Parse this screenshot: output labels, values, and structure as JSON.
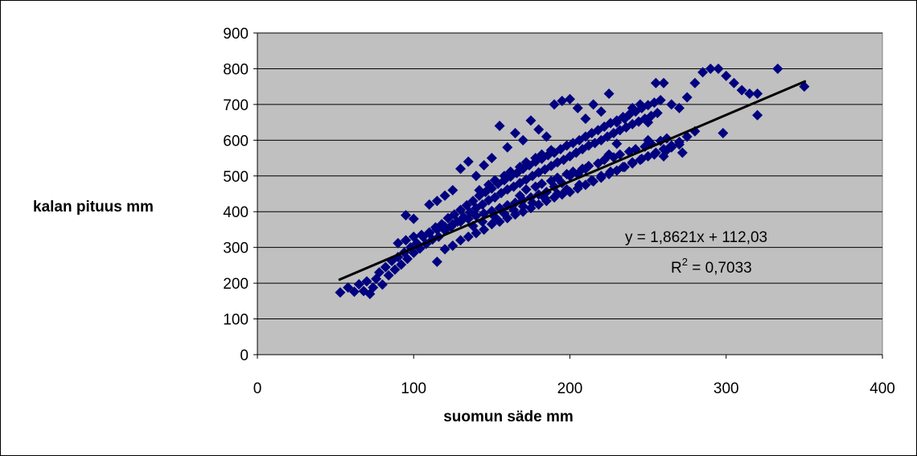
{
  "chart_data": {
    "type": "scatter",
    "xlabel": "suomun säde mm",
    "ylabel": "kalan pituus mm",
    "xlim": [
      0,
      400
    ],
    "ylim": [
      0,
      900
    ],
    "xticks": [
      "0",
      "100",
      "200",
      "300",
      "400"
    ],
    "yticks": [
      "0",
      "100",
      "200",
      "300",
      "400",
      "500",
      "600",
      "700",
      "800",
      "900"
    ],
    "grid": "horizontal",
    "plot_background": "#c0c0c0",
    "marker_color": "#000080",
    "trendline": {
      "slope": 1.8621,
      "intercept": 112.03,
      "x_range": [
        52,
        351
      ],
      "color": "#000000",
      "equation_label": "y = 1,8621x + 112,03",
      "r2_prefix": "R",
      "r2_superscript": "2",
      "r2_value": " = 0,7033"
    },
    "series": [
      {
        "marker": "diamond",
        "points": [
          [
            53,
            174
          ],
          [
            58,
            188
          ],
          [
            62,
            176
          ],
          [
            65,
            197
          ],
          [
            68,
            178
          ],
          [
            70,
            205
          ],
          [
            72,
            170
          ],
          [
            74,
            188
          ],
          [
            76,
            212
          ],
          [
            78,
            230
          ],
          [
            80,
            196
          ],
          [
            82,
            245
          ],
          [
            84,
            222
          ],
          [
            86,
            262
          ],
          [
            88,
            238
          ],
          [
            90,
            273
          ],
          [
            92,
            252
          ],
          [
            94,
            286
          ],
          [
            96,
            268
          ],
          [
            98,
            300
          ],
          [
            100,
            285
          ],
          [
            102,
            312
          ],
          [
            104,
            297
          ],
          [
            106,
            330
          ],
          [
            108,
            310
          ],
          [
            110,
            340
          ],
          [
            112,
            322
          ],
          [
            114,
            356
          ],
          [
            116,
            330
          ],
          [
            118,
            365
          ],
          [
            120,
            348
          ],
          [
            122,
            382
          ],
          [
            124,
            358
          ],
          [
            126,
            392
          ],
          [
            128,
            372
          ],
          [
            130,
            405
          ],
          [
            132,
            385
          ],
          [
            134,
            418
          ],
          [
            136,
            398
          ],
          [
            138,
            430
          ],
          [
            140,
            410
          ],
          [
            142,
            445
          ],
          [
            144,
            420
          ],
          [
            146,
            455
          ],
          [
            148,
            432
          ],
          [
            150,
            465
          ],
          [
            152,
            440
          ],
          [
            154,
            478
          ],
          [
            156,
            452
          ],
          [
            158,
            488
          ],
          [
            160,
            462
          ],
          [
            162,
            498
          ],
          [
            164,
            470
          ],
          [
            166,
            508
          ],
          [
            168,
            480
          ],
          [
            170,
            520
          ],
          [
            172,
            490
          ],
          [
            174,
            530
          ],
          [
            176,
            500
          ],
          [
            178,
            540
          ],
          [
            180,
            510
          ],
          [
            182,
            548
          ],
          [
            184,
            518
          ],
          [
            186,
            558
          ],
          [
            188,
            528
          ],
          [
            190,
            565
          ],
          [
            192,
            538
          ],
          [
            194,
            575
          ],
          [
            196,
            545
          ],
          [
            198,
            585
          ],
          [
            200,
            555
          ],
          [
            202,
            592
          ],
          [
            204,
            565
          ],
          [
            206,
            600
          ],
          [
            208,
            575
          ],
          [
            210,
            610
          ],
          [
            212,
            585
          ],
          [
            214,
            620
          ],
          [
            216,
            592
          ],
          [
            218,
            628
          ],
          [
            220,
            600
          ],
          [
            222,
            638
          ],
          [
            224,
            610
          ],
          [
            226,
            648
          ],
          [
            228,
            620
          ],
          [
            230,
            655
          ],
          [
            232,
            628
          ],
          [
            234,
            665
          ],
          [
            236,
            636
          ],
          [
            238,
            672
          ],
          [
            240,
            645
          ],
          [
            242,
            680
          ],
          [
            244,
            652
          ],
          [
            246,
            690
          ],
          [
            248,
            660
          ],
          [
            250,
            698
          ],
          [
            252,
            668
          ],
          [
            254,
            705
          ],
          [
            256,
            676
          ],
          [
            258,
            712
          ],
          [
            115,
            260
          ],
          [
            120,
            295
          ],
          [
            125,
            305
          ],
          [
            130,
            320
          ],
          [
            135,
            330
          ],
          [
            140,
            340
          ],
          [
            145,
            350
          ],
          [
            150,
            365
          ],
          [
            155,
            372
          ],
          [
            160,
            382
          ],
          [
            165,
            392
          ],
          [
            170,
            400
          ],
          [
            175,
            410
          ],
          [
            180,
            420
          ],
          [
            185,
            430
          ],
          [
            190,
            440
          ],
          [
            195,
            448
          ],
          [
            200,
            455
          ],
          [
            205,
            465
          ],
          [
            210,
            475
          ],
          [
            215,
            485
          ],
          [
            220,
            495
          ],
          [
            225,
            505
          ],
          [
            230,
            515
          ],
          [
            235,
            525
          ],
          [
            240,
            535
          ],
          [
            245,
            545
          ],
          [
            250,
            555
          ],
          [
            255,
            565
          ],
          [
            260,
            575
          ],
          [
            265,
            585
          ],
          [
            270,
            595
          ],
          [
            275,
            610
          ],
          [
            280,
            625
          ],
          [
            95,
            390
          ],
          [
            100,
            380
          ],
          [
            110,
            420
          ],
          [
            115,
            430
          ],
          [
            120,
            445
          ],
          [
            125,
            460
          ],
          [
            130,
            520
          ],
          [
            135,
            540
          ],
          [
            140,
            500
          ],
          [
            145,
            530
          ],
          [
            150,
            550
          ],
          [
            155,
            640
          ],
          [
            160,
            580
          ],
          [
            165,
            620
          ],
          [
            170,
            600
          ],
          [
            175,
            655
          ],
          [
            180,
            630
          ],
          [
            185,
            610
          ],
          [
            190,
            700
          ],
          [
            195,
            710
          ],
          [
            200,
            715
          ],
          [
            205,
            690
          ],
          [
            210,
            660
          ],
          [
            215,
            700
          ],
          [
            220,
            680
          ],
          [
            225,
            730
          ],
          [
            230,
            650
          ],
          [
            235,
            660
          ],
          [
            240,
            690
          ],
          [
            245,
            700
          ],
          [
            250,
            650
          ],
          [
            255,
            760
          ],
          [
            260,
            760
          ],
          [
            265,
            700
          ],
          [
            270,
            690
          ],
          [
            275,
            720
          ],
          [
            280,
            760
          ],
          [
            285,
            790
          ],
          [
            290,
            800
          ],
          [
            295,
            800
          ],
          [
            300,
            780
          ],
          [
            305,
            760
          ],
          [
            310,
            740
          ],
          [
            315,
            730
          ],
          [
            320,
            730
          ],
          [
            333,
            800
          ],
          [
            350,
            750
          ],
          [
            298,
            620
          ],
          [
            320,
            670
          ],
          [
            272,
            565
          ],
          [
            260,
            555
          ],
          [
            265,
            580
          ],
          [
            250,
            600
          ],
          [
            230,
            590
          ],
          [
            225,
            560
          ],
          [
            210,
            520
          ],
          [
            205,
            505
          ],
          [
            200,
            500
          ],
          [
            195,
            480
          ],
          [
            190,
            470
          ],
          [
            185,
            455
          ],
          [
            180,
            448
          ],
          [
            175,
            440
          ],
          [
            170,
            432
          ],
          [
            165,
            425
          ],
          [
            160,
            418
          ],
          [
            155,
            410
          ],
          [
            150,
            402
          ],
          [
            145,
            395
          ],
          [
            140,
            388
          ],
          [
            135,
            380
          ],
          [
            130,
            372
          ],
          [
            125,
            365
          ],
          [
            120,
            358
          ],
          [
            115,
            350
          ],
          [
            110,
            342
          ],
          [
            105,
            335
          ],
          [
            100,
            330
          ],
          [
            95,
            320
          ],
          [
            90,
            312
          ],
          [
            168,
            445
          ],
          [
            172,
            462
          ],
          [
            178,
            470
          ],
          [
            182,
            478
          ],
          [
            188,
            486
          ],
          [
            192,
            495
          ],
          [
            198,
            505
          ],
          [
            202,
            512
          ],
          [
            208,
            520
          ],
          [
            212,
            528
          ],
          [
            218,
            535
          ],
          [
            222,
            545
          ],
          [
            228,
            552
          ],
          [
            232,
            560
          ],
          [
            238,
            568
          ],
          [
            242,
            575
          ],
          [
            248,
            582
          ],
          [
            252,
            590
          ],
          [
            258,
            598
          ],
          [
            262,
            605
          ],
          [
            142,
            460
          ],
          [
            148,
            475
          ],
          [
            152,
            488
          ],
          [
            158,
            500
          ],
          [
            162,
            512
          ],
          [
            168,
            525
          ],
          [
            172,
            538
          ],
          [
            178,
            550
          ],
          [
            182,
            560
          ],
          [
            188,
            572
          ],
          [
            138,
            360
          ],
          [
            144,
            372
          ],
          [
            152,
            385
          ],
          [
            158,
            395
          ],
          [
            164,
            405
          ],
          [
            170,
            415
          ],
          [
            176,
            425
          ],
          [
            184,
            438
          ],
          [
            192,
            450
          ],
          [
            198,
            462
          ],
          [
            206,
            475
          ],
          [
            214,
            488
          ],
          [
            220,
            500
          ],
          [
            226,
            512
          ],
          [
            234,
            525
          ],
          [
            240,
            538
          ],
          [
            246,
            548
          ],
          [
            254,
            560
          ],
          [
            262,
            572
          ],
          [
            270,
            588
          ]
        ]
      }
    ]
  }
}
